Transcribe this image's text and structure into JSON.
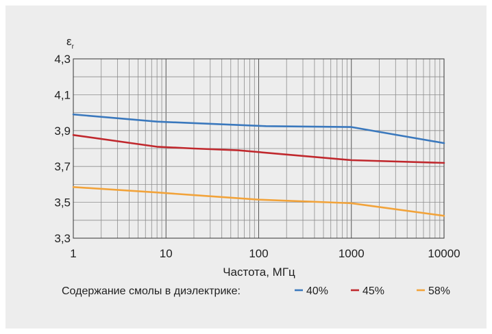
{
  "chart_data": {
    "type": "line",
    "title": "",
    "ylabel": "εr",
    "ylabel_main": "ε",
    "ylabel_sub": "r",
    "xlabel": "Частота, МГц",
    "xscale": "log",
    "xlim": [
      1,
      10000
    ],
    "ylim": [
      3.3,
      4.3
    ],
    "x_ticks": [
      {
        "value": 1,
        "label": "1"
      },
      {
        "value": 10,
        "label": "10"
      },
      {
        "value": 100,
        "label": "100"
      },
      {
        "value": 1000,
        "label": "1000"
      },
      {
        "value": 10000,
        "label": "10000"
      }
    ],
    "y_ticks": [
      {
        "value": 3.3,
        "label": "3,3"
      },
      {
        "value": 3.5,
        "label": "3,5"
      },
      {
        "value": 3.7,
        "label": "3,7"
      },
      {
        "value": 3.9,
        "label": "3,9"
      },
      {
        "value": 4.1,
        "label": "4,1"
      },
      {
        "value": 4.3,
        "label": "4,3"
      }
    ],
    "y_minor_step": 0.1,
    "grid": true,
    "legend": {
      "placement": "bottom",
      "title": "Содержание смолы в диэлектрике:"
    },
    "series": [
      {
        "name": "40%",
        "color": "#3a78bd",
        "points": [
          [
            1,
            3.99
          ],
          [
            8,
            3.95
          ],
          [
            120,
            3.925
          ],
          [
            1000,
            3.92
          ],
          [
            10000,
            3.83
          ]
        ]
      },
      {
        "name": "45%",
        "color": "#c0282d",
        "points": [
          [
            1,
            3.875
          ],
          [
            8,
            3.81
          ],
          [
            20,
            3.8
          ],
          [
            60,
            3.79
          ],
          [
            1000,
            3.735
          ],
          [
            10000,
            3.72
          ]
        ]
      },
      {
        "name": "58%",
        "color": "#f2a33a",
        "points": [
          [
            1,
            3.585
          ],
          [
            8,
            3.555
          ],
          [
            20,
            3.54
          ],
          [
            100,
            3.515
          ],
          [
            1000,
            3.495
          ],
          [
            10000,
            3.425
          ]
        ]
      }
    ]
  }
}
